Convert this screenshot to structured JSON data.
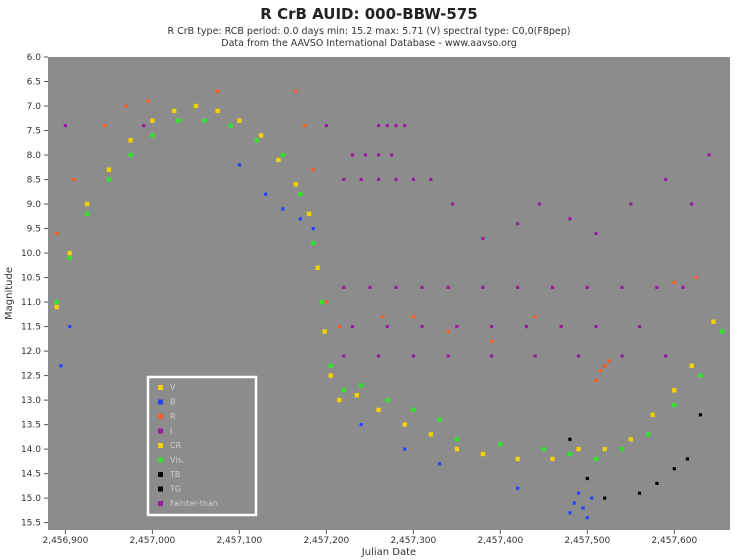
{
  "header": {
    "title": "R CrB    AUID: 000-BBW-575",
    "subtitle_line1": "R CrB   type: RCB   period: 0.0 days   min: 15.2   max: 5.71 (V)   spectral type: C0,0(F8pep)",
    "subtitle_line2": "Data from the AAVSO International Database - www.aavso.org"
  },
  "colors": {
    "plot_background": "#8c8c8c",
    "V": "#f4d000",
    "Vis": "#33e02e",
    "B": "#2244ff",
    "R": "#ff5a1e",
    "I": "#9b1c9b",
    "TG": "#000000",
    "legend_border": "#ffffff"
  },
  "chart_data": {
    "type": "scatter",
    "xlabel": "Julian Date",
    "ylabel": "Magnitude",
    "xlim": [
      2456880,
      2457664
    ],
    "ylim": [
      15.65,
      6.0
    ],
    "y_inverted": true,
    "grid": false,
    "legend_position": "bottom-left",
    "x_ticks": [
      2456900,
      2457000,
      2457100,
      2457200,
      2457300,
      2457400,
      2457500,
      2457600
    ],
    "x_tick_labels": [
      "2,456,900",
      "2,457,000",
      "2,457,100",
      "2,457,200",
      "2,457,300",
      "2,457,400",
      "2,457,500",
      "2,457,600"
    ],
    "y_ticks": [
      6.0,
      6.5,
      7.0,
      7.5,
      8.0,
      8.5,
      9.0,
      9.5,
      10.0,
      10.5,
      11.0,
      11.5,
      12.0,
      12.5,
      13.0,
      13.5,
      14.0,
      14.5,
      15.0,
      15.5
    ],
    "y_tick_labels": [
      "6.0",
      "6.5",
      "7.0",
      "7.5",
      "8.0",
      "8.5",
      "9.0",
      "9.5",
      "10.0",
      "10.5",
      "11.0",
      "11.5",
      "12.0",
      "12.5",
      "13.0",
      "13.5",
      "14.0",
      "14.5",
      "15.0",
      "15.5"
    ],
    "legend": [
      "V",
      "B",
      "R",
      "I",
      "CR",
      "Vis.",
      "TB",
      "TG",
      "Fainter-than"
    ],
    "series": [
      {
        "name": "V",
        "color": "#f4d000",
        "x": [
          2456890,
          2456905,
          2456925,
          2456950,
          2456975,
          2457000,
          2457025,
          2457050,
          2457075,
          2457100,
          2457125,
          2457145,
          2457165,
          2457180,
          2457190,
          2457198,
          2457205,
          2457215,
          2457235,
          2457260,
          2457290,
          2457320,
          2457350,
          2457380,
          2457420,
          2457460,
          2457490,
          2457520,
          2457550,
          2457575,
          2457600,
          2457620,
          2457645
        ],
        "y": [
          11.1,
          10.0,
          9.0,
          8.3,
          7.7,
          7.3,
          7.1,
          7.0,
          7.1,
          7.3,
          7.6,
          8.1,
          8.6,
          9.2,
          10.3,
          11.6,
          12.5,
          13.0,
          12.9,
          13.2,
          13.5,
          13.7,
          14.0,
          14.1,
          14.2,
          14.2,
          14.0,
          14.0,
          13.8,
          13.3,
          12.8,
          12.3,
          11.4
        ]
      },
      {
        "name": "Vis.",
        "color": "#33e02e",
        "x": [
          2456890,
          2456905,
          2456925,
          2456950,
          2456975,
          2457000,
          2457030,
          2457060,
          2457090,
          2457120,
          2457150,
          2457170,
          2457185,
          2457195,
          2457205,
          2457220,
          2457240,
          2457270,
          2457300,
          2457330,
          2457350,
          2457400,
          2457450,
          2457480,
          2457510,
          2457540,
          2457570,
          2457600,
          2457630,
          2457655
        ],
        "y": [
          11.0,
          10.1,
          9.2,
          8.5,
          8.0,
          7.6,
          7.3,
          7.3,
          7.4,
          7.7,
          8.0,
          8.8,
          9.8,
          11.0,
          12.3,
          12.8,
          12.7,
          13.0,
          13.2,
          13.4,
          13.8,
          13.9,
          14.0,
          14.1,
          14.2,
          14.0,
          13.7,
          13.1,
          12.5,
          11.6
        ]
      },
      {
        "name": "B",
        "color": "#2244ff",
        "x": [
          2456895,
          2456905,
          2457100,
          2457130,
          2457150,
          2457170,
          2457185,
          2457240,
          2457290,
          2457330,
          2457420,
          2457480,
          2457485,
          2457490,
          2457495,
          2457500,
          2457505
        ],
        "y": [
          12.3,
          11.5,
          8.2,
          8.8,
          9.1,
          9.3,
          9.5,
          13.5,
          14.0,
          14.3,
          14.8,
          15.3,
          15.1,
          14.9,
          15.2,
          15.4,
          15.0
        ]
      },
      {
        "name": "R",
        "color": "#ff5a1e",
        "x": [
          2456890,
          2456910,
          2456945,
          2456970,
          2456995,
          2457075,
          2457165,
          2457175,
          2457185,
          2457200,
          2457215,
          2457265,
          2457300,
          2457340,
          2457390,
          2457440,
          2457510,
          2457515,
          2457520,
          2457525,
          2457600,
          2457625
        ],
        "y": [
          9.6,
          8.5,
          7.4,
          7.0,
          6.9,
          6.7,
          6.7,
          7.4,
          8.3,
          11.0,
          11.5,
          11.3,
          11.3,
          11.6,
          11.8,
          11.3,
          12.6,
          12.4,
          12.3,
          12.2,
          10.6,
          10.5
        ]
      },
      {
        "name": "I",
        "color": "#9b1c9b",
        "x": [
          2456900,
          2456990,
          2457200,
          2457260,
          2457270,
          2457280,
          2457290,
          2457230,
          2457245,
          2457260,
          2457275,
          2457220,
          2457240,
          2457260,
          2457280,
          2457300,
          2457320,
          2457345,
          2457380,
          2457420,
          2457445,
          2457480,
          2457510,
          2457550,
          2457590,
          2457620,
          2457640,
          2457220,
          2457250,
          2457280,
          2457310,
          2457340,
          2457380,
          2457420,
          2457460,
          2457500,
          2457540,
          2457580,
          2457610,
          2457230,
          2457270,
          2457310,
          2457350,
          2457390,
          2457430,
          2457470,
          2457510,
          2457560,
          2457220,
          2457260,
          2457300,
          2457340,
          2457390,
          2457440,
          2457490,
          2457540,
          2457590
        ],
        "y": [
          7.4,
          7.4,
          7.4,
          7.4,
          7.4,
          7.4,
          7.4,
          8.0,
          8.0,
          8.0,
          8.0,
          8.5,
          8.5,
          8.5,
          8.5,
          8.5,
          8.5,
          9.0,
          9.7,
          9.4,
          9.0,
          9.3,
          9.6,
          9.0,
          8.5,
          9.0,
          8.0,
          10.7,
          10.7,
          10.7,
          10.7,
          10.7,
          10.7,
          10.7,
          10.7,
          10.7,
          10.7,
          10.7,
          10.7,
          11.5,
          11.5,
          11.5,
          11.5,
          11.5,
          11.5,
          11.5,
          11.5,
          11.5,
          12.1,
          12.1,
          12.1,
          12.1,
          12.1,
          12.1,
          12.1,
          12.1,
          12.1
        ]
      },
      {
        "name": "TG",
        "color": "#000000",
        "x": [
          2457480,
          2457500,
          2457520,
          2457560,
          2457580,
          2457600,
          2457615,
          2457630
        ],
        "y": [
          13.8,
          14.6,
          15.0,
          14.9,
          14.7,
          14.4,
          14.2,
          13.3
        ]
      }
    ]
  }
}
